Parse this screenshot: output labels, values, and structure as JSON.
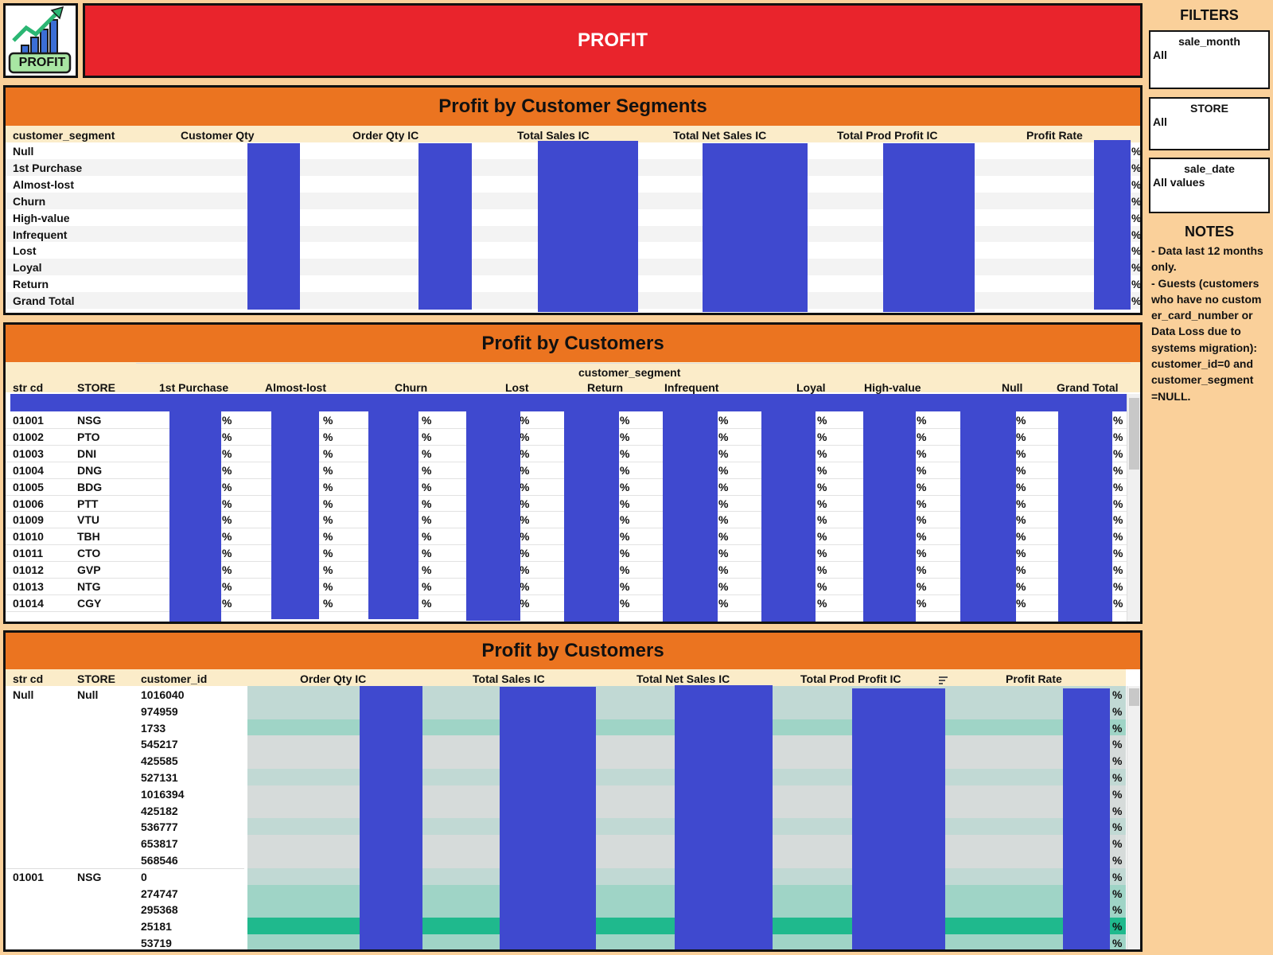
{
  "logo": {
    "text": "PROFIT",
    "icon": "growth-chart-icon"
  },
  "header": {
    "title": "PROFIT"
  },
  "filters": {
    "heading": "FILTERS",
    "items": [
      {
        "label": "sale_month",
        "value": "All"
      },
      {
        "label": "STORE",
        "value": "All"
      },
      {
        "label": "sale_date",
        "value": "All values"
      }
    ]
  },
  "notes": {
    "heading": "NOTES",
    "text": "- Data last 12 months only.\n- Guests (customers who have no custom er_card_number or Data Loss due to systems migration): customer_id=0 and customer_segment =NULL."
  },
  "segments_panel": {
    "title": "Profit by Customer Segments",
    "columns": [
      "customer_segment",
      "Customer Qty",
      "Order Qty IC",
      "Total Sales IC",
      "Total Net Sales IC",
      "Total Prod Profit IC",
      "Profit Rate"
    ],
    "rows": [
      "Null",
      "1st Purchase",
      "Almost-lost",
      "Churn",
      "High-value",
      "Infrequent",
      "Lost",
      "Loyal",
      "Return",
      "Grand Total"
    ],
    "pct_symbol": "%"
  },
  "store_panel": {
    "title": "Profit by Customers",
    "group_header": "customer_segment",
    "columns": [
      "str cd",
      "STORE",
      "1st Purchase",
      "Almost-lost",
      "Churn",
      "Lost",
      "Return",
      "Infrequent",
      "Loyal",
      "High-value",
      "Null",
      "Grand Total"
    ],
    "rows": [
      {
        "code": "01001",
        "store": "NSG"
      },
      {
        "code": "01002",
        "store": "PTO"
      },
      {
        "code": "01003",
        "store": "DNI"
      },
      {
        "code": "01004",
        "store": "DNG"
      },
      {
        "code": "01005",
        "store": "BDG"
      },
      {
        "code": "01006",
        "store": "PTT"
      },
      {
        "code": "01009",
        "store": "VTU"
      },
      {
        "code": "01010",
        "store": "TBH"
      },
      {
        "code": "01011",
        "store": "CTO"
      },
      {
        "code": "01012",
        "store": "GVP"
      },
      {
        "code": "01013",
        "store": "NTG"
      },
      {
        "code": "01014",
        "store": "CGY"
      }
    ],
    "pct_symbol": "%"
  },
  "customer_panel": {
    "title": "Profit by Customers",
    "columns": [
      "str cd",
      "STORE",
      "customer_id",
      "Order Qty IC",
      "Total Sales IC",
      "Total Net Sales IC",
      "Total Prod Profit IC",
      "Profit Rate"
    ],
    "groups": [
      {
        "code": "Null",
        "store": "Null",
        "ids": [
          "1016040",
          "974959",
          "1733",
          "545217",
          "425585",
          "527131",
          "1016394",
          "425182",
          "536777",
          "653817",
          "568546"
        ]
      },
      {
        "code": "01001",
        "store": "NSG",
        "ids": [
          "0",
          "274747",
          "295368",
          "25181",
          "53719"
        ]
      }
    ],
    "pct_symbol": "%",
    "sort_icon": "sort-icon"
  }
}
